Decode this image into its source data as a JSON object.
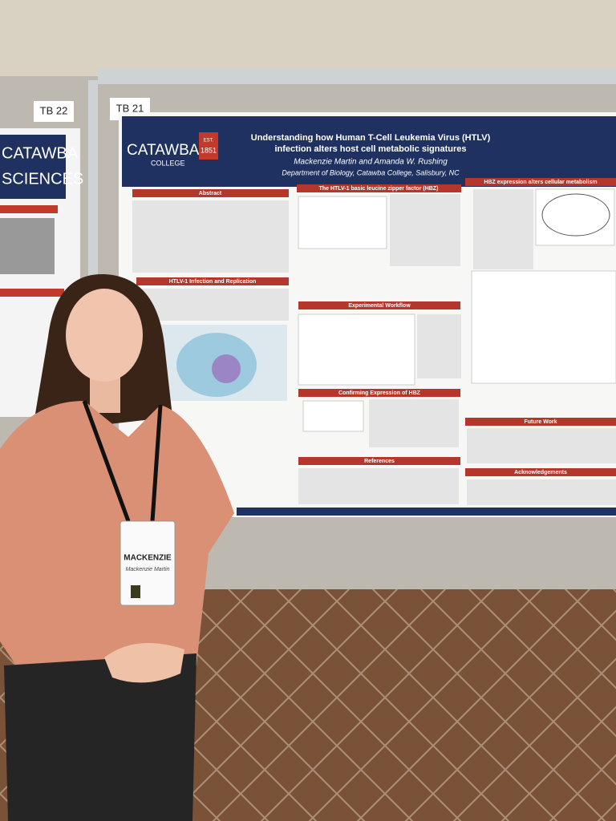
{
  "boards": {
    "left": "TB 22",
    "right": "TB 21"
  },
  "left_poster": {
    "logo": "CATAWBA",
    "word": "SCIENCES"
  },
  "poster": {
    "logo": "CATAWBA",
    "logo_sub": "COLLEGE",
    "est": "EST.",
    "year": "1851",
    "title_lines": [
      "Understanding how Human T-Cell Leukemia Virus (HTLV)",
      "infection alters host cell metabolic signatures"
    ],
    "authors": "Mackenzie Martin and Amanda W. Rushing",
    "department": "Department of Biology, Catawba College, Salisbury, NC",
    "sections": [
      "Abstract",
      "HTLV-1 Infection and Replication",
      "The HTLV-1 basic leucine zipper factor (HBZ)",
      "Experimental Workflow",
      "Confirming Expression of HBZ",
      "References",
      "HBZ expression alters cellular metabolism",
      "Future Work",
      "Acknowledgements"
    ]
  },
  "badge": {
    "first": "MACKENZIE",
    "full": "Mackenzie Martin"
  }
}
